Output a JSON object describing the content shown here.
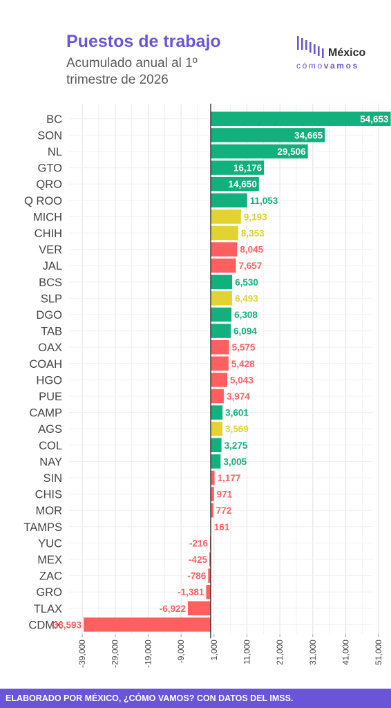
{
  "header": {
    "title": "Puestos de trabajo",
    "subtitle": "Acumulado anual al 1º trimestre de 2026"
  },
  "logo": {
    "word": "México",
    "sub_light": "cómo",
    "sub_bold": "vamos"
  },
  "footer": {
    "text": "ELABORADO POR MÉXICO, ¿CÓMO VAMOS? CON DATOS DEL IMSS."
  },
  "colors": {
    "green": "#12b07d",
    "yellow": "#e3d330",
    "red": "#ff5f5f",
    "accent": "#6a55d8"
  },
  "chart_data": {
    "type": "bar",
    "orientation": "horizontal",
    "title": "Puestos de trabajo",
    "subtitle": "Acumulado anual al 1º trimestre de 2026",
    "xlim": [
      -43000,
      57000
    ],
    "x_ticks": [
      -39000,
      -29000,
      -19000,
      -9000,
      1000,
      11000,
      21000,
      31000,
      41000,
      51000
    ],
    "x_tick_labels": [
      "-39,000",
      "-29,000",
      "-19,000",
      "-9,000",
      "1,000",
      "11,000",
      "21,000",
      "31,000",
      "41,000",
      "51,000"
    ],
    "grid": true,
    "categories": [
      "BC",
      "SON",
      "NL",
      "GTO",
      "QRO",
      "Q ROO",
      "MICH",
      "CHIH",
      "VER",
      "JAL",
      "BCS",
      "SLP",
      "DGO",
      "TAB",
      "OAX",
      "COAH",
      "HGO",
      "PUE",
      "CAMP",
      "AGS",
      "COL",
      "NAY",
      "SIN",
      "CHIS",
      "MOR",
      "TAMPS",
      "YUC",
      "MEX",
      "ZAC",
      "GRO",
      "TLAX",
      "CDMX"
    ],
    "values": [
      54653,
      34665,
      29506,
      16176,
      14650,
      11053,
      9193,
      8353,
      8045,
      7657,
      6530,
      6493,
      6308,
      6094,
      5575,
      5428,
      5043,
      3974,
      3601,
      3569,
      3275,
      3005,
      1177,
      971,
      772,
      161,
      -216,
      -425,
      -786,
      -1381,
      -6922,
      -38593
    ],
    "labels": [
      "54,653",
      "34,665",
      "29,506",
      "16,176",
      "14,650",
      "11,053",
      "9,193",
      "8,353",
      "8,045",
      "7,657",
      "6,530",
      "6,493",
      "6,308",
      "6,094",
      "5,575",
      "5,428",
      "5,043",
      "3,974",
      "3,601",
      "3,569",
      "3,275",
      "3,005",
      "1,177",
      "971",
      "772",
      "161",
      "-216",
      "-425",
      "-786",
      "-1,381",
      "-6,922",
      "-38,593"
    ],
    "bar_colors": [
      "green",
      "green",
      "green",
      "green",
      "green",
      "green",
      "yellow",
      "yellow",
      "red",
      "red",
      "green",
      "yellow",
      "green",
      "green",
      "red",
      "red",
      "red",
      "red",
      "green",
      "yellow",
      "green",
      "green",
      "red",
      "red",
      "red",
      "red",
      "red",
      "red",
      "red",
      "red",
      "red",
      "red"
    ]
  }
}
